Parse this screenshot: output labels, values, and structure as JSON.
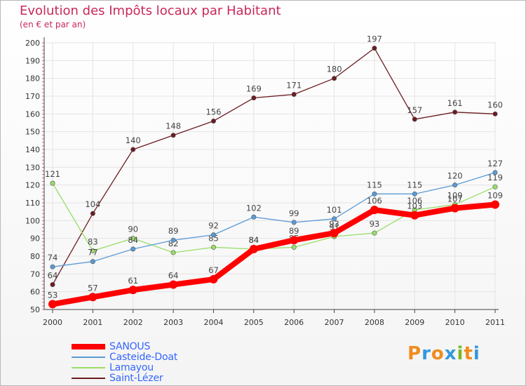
{
  "header": {
    "title": "Evolution des Impôts locaux par Habitant",
    "subtitle": "(en € et par an)"
  },
  "brand": {
    "letters": [
      "P",
      "r",
      "o",
      "x",
      "i",
      "t",
      "i"
    ],
    "colors": [
      "#f08c1e",
      "#3399dd",
      "#f08c1e",
      "#3399dd",
      "#77bb22",
      "#f08c1e",
      "#3399dd"
    ]
  },
  "chart_data": {
    "type": "line",
    "title": "Evolution des Impôts locaux par Habitant",
    "subtitle": "(en € et par an)",
    "xlabel": "",
    "ylabel": "",
    "x": [
      "2000",
      "2001",
      "2002",
      "2003",
      "2004",
      "2005",
      "2006",
      "2007",
      "2008",
      "2009",
      "2010",
      "2011"
    ],
    "ylim": [
      50,
      200
    ],
    "yticks": [
      "50",
      "60",
      "70",
      "80",
      "90",
      "100",
      "110",
      "120",
      "130",
      "140",
      "150",
      "160",
      "170",
      "180",
      "190",
      "200"
    ],
    "grid": true,
    "legend_position": "bottom-left",
    "series": [
      {
        "name": "Saint-Lézer",
        "color": "#6b1c22",
        "values": [
          64,
          104,
          140,
          148,
          156,
          169,
          171,
          180,
          197,
          157,
          161,
          160
        ],
        "labels": [
          "64",
          "104",
          "140",
          "148",
          "156",
          "169",
          "171",
          "180",
          "197",
          "157",
          "161",
          "160"
        ]
      },
      {
        "name": "Lamayou",
        "color": "#99dd66",
        "values": [
          121,
          83,
          90,
          82,
          85,
          84,
          85,
          91,
          93,
          106,
          109,
          119
        ],
        "labels": [
          "121",
          "83",
          "90",
          "82",
          "85",
          "84",
          "85",
          "91",
          "93",
          "106",
          "109",
          "119"
        ]
      },
      {
        "name": "Casteide-Doat",
        "color": "#5b9bd5",
        "values": [
          74,
          77,
          84,
          89,
          92,
          102,
          99,
          101,
          115,
          115,
          120,
          127
        ],
        "labels": [
          "74",
          "77",
          "84",
          "89",
          "92",
          "102",
          "99",
          "101",
          "115",
          "115",
          "120",
          "127"
        ]
      },
      {
        "name": "SANOUS",
        "color": "#ff0000",
        "values": [
          53,
          57,
          61,
          64,
          67,
          84,
          89,
          93,
          106,
          103,
          107,
          109
        ],
        "labels": [
          "53",
          "57",
          "61",
          "64",
          "67",
          "84",
          "89",
          "93",
          "106",
          "103",
          "107",
          "109"
        ]
      }
    ],
    "legend": [
      "SANOUS",
      "Casteide-Doat",
      "Lamayou",
      "Saint-Lézer"
    ]
  }
}
